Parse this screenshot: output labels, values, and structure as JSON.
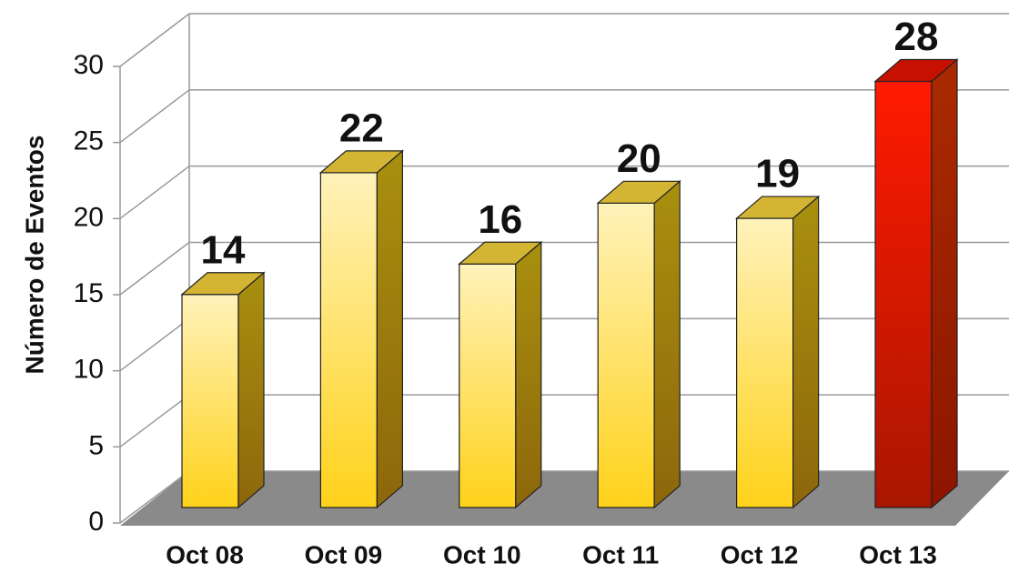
{
  "chart_data": {
    "type": "bar3d",
    "y_label": "Número de Eventos",
    "categories": [
      "Oct 08",
      "Oct 09",
      "Oct 10",
      "Oct 11",
      "Oct 12",
      "Oct 13"
    ],
    "values": [
      14,
      22,
      16,
      20,
      19,
      28
    ],
    "colors": [
      "#ffd21a",
      "#ffd21a",
      "#ffd21a",
      "#ffd21a",
      "#ffd21a",
      "#ff1a00"
    ],
    "ylim": [
      0,
      30
    ],
    "yticks": [
      0,
      5,
      10,
      15,
      20,
      25,
      30
    ],
    "grid": true
  }
}
